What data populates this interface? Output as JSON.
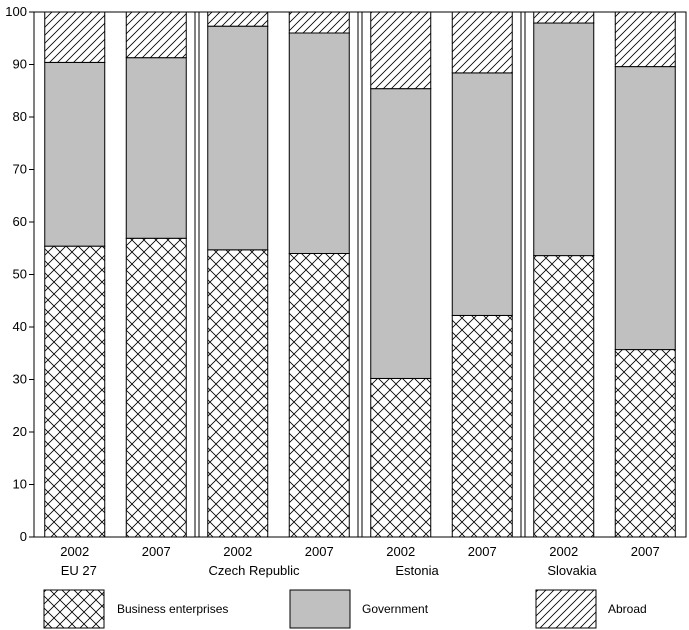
{
  "chart_data": {
    "type": "bar",
    "stacked": true,
    "y_ticks": [
      "0",
      "10",
      "20",
      "30",
      "40",
      "50",
      "60",
      "70",
      "80",
      "90",
      "100"
    ],
    "ylim": [
      0,
      100
    ],
    "groups": [
      "EU 27",
      "Czech Republic",
      "Estonia",
      "Slovakia"
    ],
    "categories": [
      "2002",
      "2007",
      "2002",
      "2007",
      "2002",
      "2007",
      "2002",
      "2007"
    ],
    "series": [
      {
        "name": "Business enterprises",
        "pattern": "crosshatch",
        "values": [
          55.4,
          56.9,
          54.7,
          54.0,
          30.2,
          42.2,
          53.6,
          35.7
        ]
      },
      {
        "name": "Government",
        "pattern": "solid",
        "values": [
          35.0,
          34.4,
          42.6,
          42.0,
          55.2,
          46.2,
          44.3,
          53.9
        ]
      },
      {
        "name": "Abroad",
        "pattern": "diagonal",
        "values": [
          9.6,
          8.7,
          2.7,
          4.0,
          14.6,
          11.6,
          2.1,
          10.4
        ]
      }
    ],
    "colors": {
      "government": "#c0c0c0",
      "outline": "#000000",
      "background": "#ffffff"
    },
    "legend_position": "bottom",
    "grid": false
  }
}
